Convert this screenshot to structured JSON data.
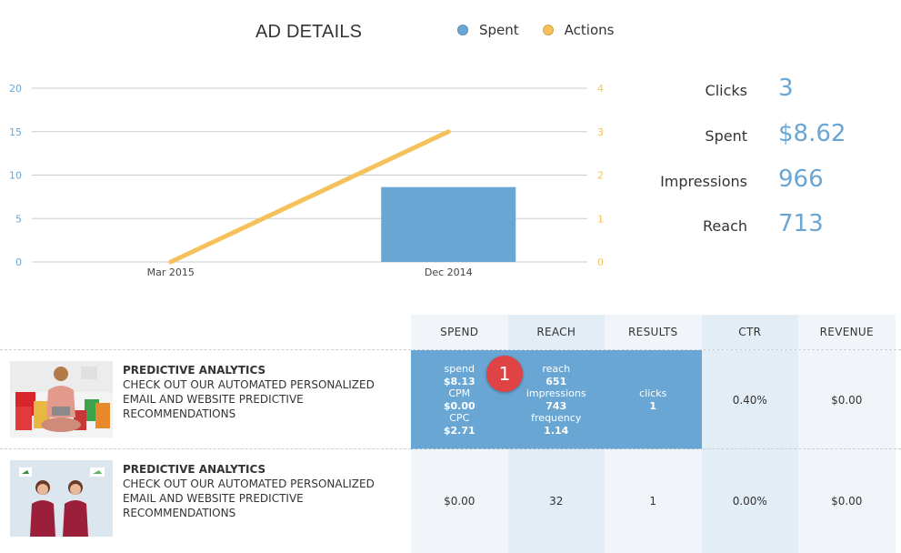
{
  "title": "AD DETAILS",
  "legend": [
    {
      "name": "Spent",
      "color": "#6aa6d4"
    },
    {
      "name": "Actions",
      "color": "#f5c15a"
    }
  ],
  "chart_data": {
    "type": "bar",
    "categories": [
      "Mar 2015",
      "Dec 2014"
    ],
    "series": [
      {
        "name": "Spent",
        "type": "bar",
        "axis": "left",
        "color": "#6aa6d4",
        "values": [
          0,
          8.62
        ]
      },
      {
        "name": "Actions",
        "type": "line",
        "axis": "right",
        "color": "#f5c15a",
        "values": [
          0,
          3
        ]
      }
    ],
    "y_left": {
      "min": 0,
      "max": 20,
      "ticks": [
        "0",
        "5",
        "10",
        "15",
        "20"
      ]
    },
    "y_right": {
      "min": 0,
      "max": 4,
      "ticks": [
        "0",
        "1",
        "2",
        "3",
        "4"
      ]
    },
    "grid": true,
    "legend_position": "top"
  },
  "stats": [
    {
      "label": "Clicks",
      "value": "3"
    },
    {
      "label": "Spent",
      "value": "$8.62"
    },
    {
      "label": "Impressions",
      "value": "966"
    },
    {
      "label": "Reach",
      "value": "713"
    }
  ],
  "table": {
    "headers": [
      "SPEND",
      "REACH",
      "RESULTS",
      "CTR",
      "REVENUE"
    ],
    "rows": [
      {
        "title": "PREDICTIVE ANALYTICS",
        "desc": "CHECK OUT OUR AUTOMATED PERSONALIZED EMAIL AND WEBSITE PREDICTIVE RECOMMENDATIONS",
        "spend": {
          "l1": "spend",
          "v1": "$8.13",
          "l2": "CPM",
          "v2": "$0.00",
          "l3": "CPC",
          "v3": "$2.71"
        },
        "reach": {
          "l1": "reach",
          "v1": "651",
          "l2": "impressions",
          "v2": "743",
          "l3": "frequency",
          "v3": "1.14"
        },
        "results": {
          "l1": "clicks",
          "v1": "1"
        },
        "ctr": "0.40%",
        "revenue": "$0.00",
        "badge": "1"
      },
      {
        "title": "PREDICTIVE ANALYTICS",
        "desc": "CHECK OUT OUR AUTOMATED PERSONALIZED EMAIL AND WEBSITE PREDICTIVE RECOMMENDATIONS",
        "spend": "$0.00",
        "reach": "32",
        "results": "1",
        "ctr": "0.00%",
        "revenue": "$0.00"
      }
    ]
  }
}
